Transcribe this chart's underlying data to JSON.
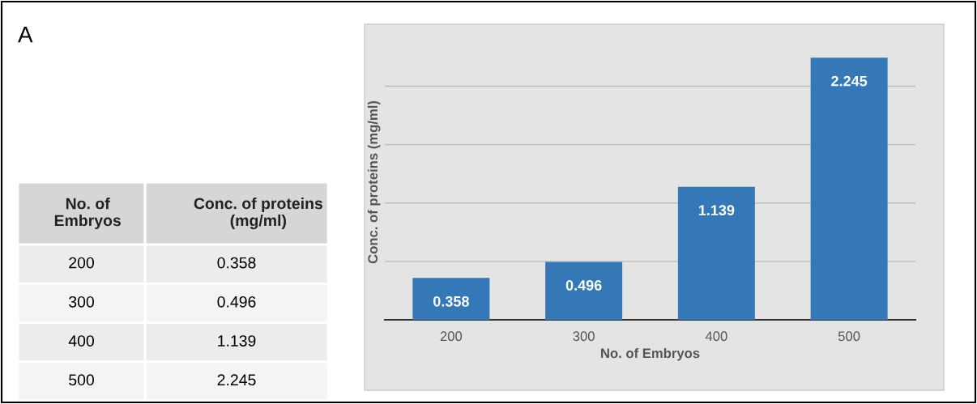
{
  "chart_data": {
    "type": "bar",
    "xlabel": "No. of Embryos",
    "ylabel": "Conc. of proteins (mg/ml)",
    "categories": [
      "200",
      "300",
      "400",
      "500"
    ],
    "values": [
      0.358,
      0.496,
      1.139,
      2.245
    ],
    "color": "#3478b8",
    "data_labels": true,
    "yticks": [
      {
        "value": 0.5,
        "label": null
      },
      {
        "value": 1,
        "label": null
      },
      {
        "value": 1.5,
        "label": null
      },
      {
        "value": 2,
        "label": null
      }
    ],
    "grid": "y",
    "tick_labels": "x",
    "legend": false,
    "annotations": [
      "A",
      "No. of\nEmbryos",
      "Conc. of proteins\n(mg/ml)",
      "0.358",
      "0.496",
      "1.139",
      "2.245"
    ]
  }
}
